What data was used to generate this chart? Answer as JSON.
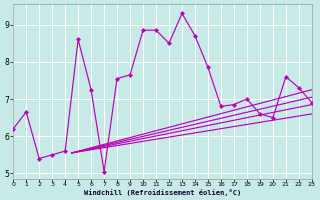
{
  "background_color": "#c8eae6",
  "line_color": "#bb00bb",
  "grid_color": "#ffffff",
  "xlabel": "Windchill (Refroidissement éolien,°C)",
  "xlim": [
    0,
    23
  ],
  "ylim": [
    4.85,
    9.55
  ],
  "yticks": [
    5,
    6,
    7,
    8,
    9
  ],
  "xticks": [
    0,
    1,
    2,
    3,
    4,
    5,
    6,
    7,
    8,
    9,
    10,
    11,
    12,
    13,
    14,
    15,
    16,
    17,
    18,
    19,
    20,
    21,
    22,
    23
  ],
  "main_line": {
    "x": [
      0,
      1,
      2,
      3,
      4,
      5,
      6,
      7,
      8,
      9,
      10,
      11,
      12,
      13,
      14,
      15,
      16,
      17,
      18,
      19,
      20,
      21,
      22,
      23
    ],
    "y": [
      6.2,
      6.65,
      5.4,
      5.5,
      5.6,
      8.6,
      7.25,
      5.05,
      7.55,
      7.65,
      8.85,
      8.85,
      8.5,
      9.3,
      8.7,
      7.85,
      6.8,
      6.85,
      7.0,
      6.6,
      6.5,
      7.6,
      7.3,
      6.9
    ]
  },
  "trend_lines": [
    {
      "x0": 4.5,
      "y0": 5.55,
      "x1": 23,
      "y1": 7.25
    },
    {
      "x0": 4.5,
      "y0": 5.55,
      "x1": 23,
      "y1": 7.05
    },
    {
      "x0": 4.5,
      "y0": 5.55,
      "x1": 23,
      "y1": 6.85
    },
    {
      "x0": 4.5,
      "y0": 5.55,
      "x1": 23,
      "y1": 6.6
    }
  ]
}
